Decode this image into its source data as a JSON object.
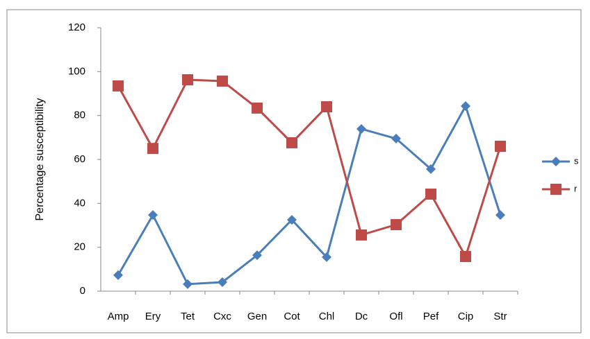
{
  "chart_data": {
    "type": "line",
    "y_label": "Percentage susceptibility",
    "categories": [
      "Amp",
      "Ery",
      "Tet",
      "Cxc",
      "Gen",
      "Cot",
      "Chl",
      "Dc",
      "Ofl",
      "Pef",
      "Cip",
      "Str"
    ],
    "series": [
      {
        "name": "s",
        "color": "#4a7ebb",
        "marker": "diamond",
        "values": [
          7.3,
          34.7,
          3.2,
          4.1,
          16.4,
          32.5,
          15.5,
          73.9,
          69.5,
          55.6,
          84.3,
          34.7
        ]
      },
      {
        "name": "r",
        "color": "#be4b48",
        "marker": "square",
        "values": [
          93.5,
          65,
          96.3,
          95.7,
          83.4,
          67.6,
          84,
          25.6,
          30.3,
          44.2,
          15.8,
          66
        ]
      }
    ],
    "ylim": [
      0,
      120
    ],
    "yticks": [
      0,
      20,
      40,
      60,
      80,
      100,
      120
    ],
    "grid": false,
    "legend": "right"
  }
}
